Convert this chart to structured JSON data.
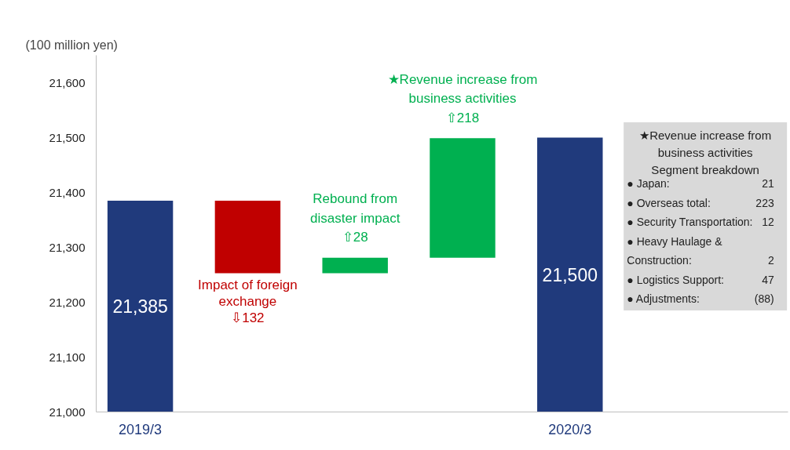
{
  "chart_data": {
    "type": "bar",
    "ylabel": "(100 million yen)",
    "categories": [
      "2019/3",
      null,
      null,
      null,
      "2020/3"
    ],
    "values": [
      21385,
      -132,
      28,
      218,
      21500
    ],
    "base": [
      null,
      21385,
      21253,
      21281,
      null
    ],
    "colors": [
      "#203a7c",
      "#c00000",
      "#00b050",
      "#00b050",
      "#203a7c"
    ],
    "value_labels": [
      "21,385",
      "⇩132",
      "⇧28",
      "⇧218",
      "21,500"
    ],
    "ylim": [
      21000,
      21650
    ],
    "yticks": [
      {
        "value": 21000,
        "label": "21,000"
      },
      {
        "value": 21100,
        "label": "21,100"
      },
      {
        "value": 21200,
        "label": "21,200"
      },
      {
        "value": 21300,
        "label": "21,300"
      },
      {
        "value": 21400,
        "label": "21,400"
      },
      {
        "value": 21500,
        "label": "21,500"
      },
      {
        "value": 21600,
        "label": "21,600"
      }
    ],
    "grid": false,
    "annotations": [
      "Impact of foreign exchange",
      "Rebound from disaster impact",
      "★Revenue increase from business activities",
      "★Revenue increase from business activities Segment breakdown",
      "● Japan:",
      "21",
      "● Overseas total:",
      "223",
      "● Security Transportation:",
      "12",
      "● Heavy Haulage & Construction:",
      "2",
      "● Logistics Support:",
      "47",
      "● Adjustments:",
      "(88)"
    ]
  }
}
